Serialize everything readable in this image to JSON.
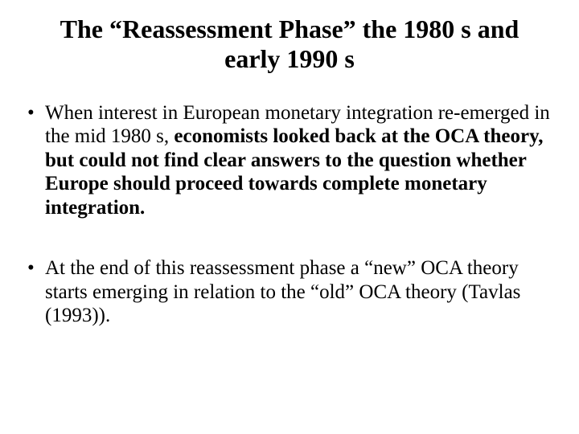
{
  "background_color": "#ffffff",
  "text_color": "#000000",
  "font_family": "Times New Roman",
  "title": "The “Reassessment Phase” the 1980 s and early 1990 s",
  "title_fontsize": 32,
  "title_fontweight": "bold",
  "bullets": [
    {
      "prefix": "When interest in European monetary integration re-emerged in the mid 1980 s, ",
      "bold": "economists looked back at the OCA theory, but could not find clear answers to the question whether Europe should proceed towards complete monetary integration.",
      "suffix": ""
    },
    {
      "prefix": "At the end of this reassessment phase a “new” OCA theory starts emerging in relation to the “old” OCA theory (Tavlas (1993)).",
      "bold": "",
      "suffix": ""
    }
  ],
  "body_fontsize": 25,
  "bullet_marker": "•"
}
